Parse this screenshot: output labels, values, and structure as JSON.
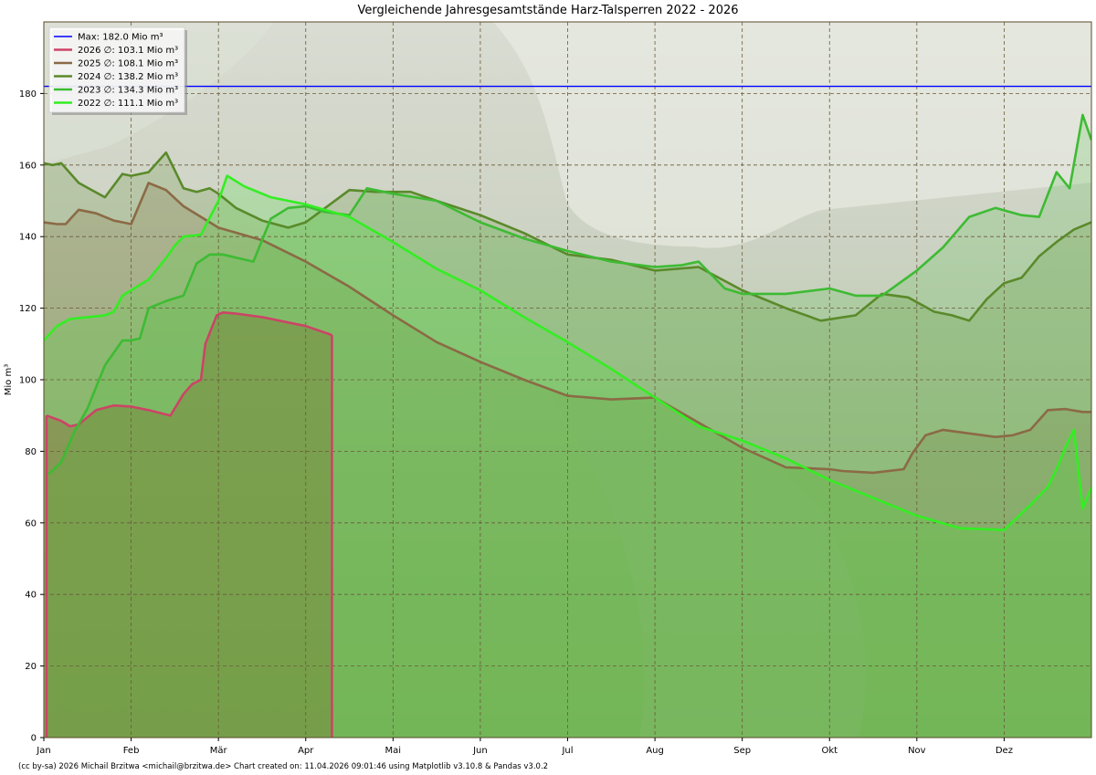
{
  "chart_data": {
    "type": "area",
    "title": "Vergleichende Jahresgesamtstände Harz-Talsperren 2022 - 2026",
    "ylabel": "Mio m³",
    "xlabel": "",
    "ylim": [
      0,
      200
    ],
    "xlim": [
      0,
      12
    ],
    "month_labels": [
      "Jan",
      "Feb",
      "Mär",
      "Apr",
      "Mai",
      "Jun",
      "Jul",
      "Aug",
      "Sep",
      "Okt",
      "Nov",
      "Dez"
    ],
    "y_ticks": [
      0,
      20,
      40,
      60,
      80,
      100,
      120,
      140,
      160,
      180
    ],
    "grid": true,
    "legend_position": "top-left",
    "max_line": {
      "name": "Max: 182.0 Mio m³",
      "value": 182.0,
      "color": "#0000ff"
    },
    "series": [
      {
        "name": "2026 ∅: 103.1 Mio m³",
        "color": "#cc4466",
        "fill": "#b45a5a",
        "fill_opacity": 0.55,
        "x": [
          0.03,
          0.2,
          0.3,
          0.4,
          0.6,
          0.8,
          1.0,
          1.2,
          1.45,
          1.6,
          1.7,
          1.8,
          1.85,
          1.98,
          2.05,
          2.2,
          2.5,
          3.0,
          3.3
        ],
        "y": [
          90,
          88.5,
          87,
          87.5,
          91.5,
          92.8,
          92.5,
          91.5,
          90,
          96,
          98.8,
          100,
          110,
          118,
          118.8,
          118.5,
          117.5,
          115,
          112.5
        ]
      },
      {
        "name": "2025 ∅: 108.1 Mio m³",
        "color": "#8b6a45",
        "fill": "#8b6a45",
        "fill_opacity": 0.22,
        "x": [
          0,
          0.15,
          0.25,
          0.4,
          0.6,
          0.8,
          1.0,
          1.2,
          1.4,
          1.6,
          1.8,
          2.0,
          2.5,
          3.0,
          3.5,
          4.0,
          4.5,
          5.0,
          5.5,
          6.0,
          6.5,
          7.0,
          7.5,
          8.0,
          8.5,
          9.0,
          9.15,
          9.5,
          9.85,
          9.95,
          10.1,
          10.3,
          10.6,
          10.9,
          11.1,
          11.3,
          11.5,
          11.7,
          11.9,
          12.0
        ],
        "y": [
          144,
          143.5,
          143.5,
          147.5,
          146.5,
          144.5,
          143.5,
          155,
          153,
          148.5,
          145.5,
          142.5,
          139,
          133,
          126,
          118,
          110.5,
          105,
          100,
          95.5,
          94.5,
          95,
          88,
          81,
          75.5,
          75,
          74.5,
          74,
          75,
          79.5,
          84.5,
          86,
          85,
          84,
          84.5,
          86,
          91.5,
          91.8,
          91,
          91
        ]
      },
      {
        "name": "2024 ∅: 138.2 Mio m³",
        "color": "#5a8a2a",
        "fill": "#5a8a2a",
        "fill_opacity": 0.2,
        "x": [
          0,
          0.1,
          0.2,
          0.4,
          0.7,
          0.9,
          1.0,
          1.2,
          1.4,
          1.5,
          1.6,
          1.75,
          1.9,
          2.0,
          2.2,
          2.5,
          2.8,
          3.0,
          3.25,
          3.5,
          3.8,
          4.2,
          4.5,
          5.0,
          5.5,
          6.0,
          6.5,
          7.0,
          7.5,
          8.0,
          8.5,
          8.9,
          9.3,
          9.6,
          9.9,
          10.2,
          10.4,
          10.6,
          10.8,
          11.0,
          11.2,
          11.4,
          11.6,
          11.8,
          12.0
        ],
        "y": [
          160.5,
          160,
          160.5,
          155,
          151,
          157.5,
          157,
          158,
          163.5,
          158.5,
          153.5,
          152.5,
          153.5,
          152,
          148,
          144.5,
          142.5,
          144,
          148.5,
          153,
          152.5,
          152.5,
          150,
          146,
          141,
          135,
          133.5,
          130.5,
          131.5,
          125,
          120,
          116.5,
          118,
          124,
          123,
          119,
          118,
          116.5,
          122.5,
          127,
          128.5,
          134.5,
          138.5,
          142,
          144
        ]
      },
      {
        "name": "2023 ∅: 134.3 Mio m³",
        "color": "#3dbb33",
        "fill": "#3dbb33",
        "fill_opacity": 0.18,
        "x": [
          0.05,
          0.2,
          0.35,
          0.5,
          0.7,
          0.9,
          1.0,
          1.1,
          1.2,
          1.4,
          1.6,
          1.75,
          1.9,
          2.05,
          2.4,
          2.6,
          2.8,
          3.0,
          3.2,
          3.5,
          3.7,
          4.0,
          4.5,
          5.0,
          5.5,
          6.0,
          6.5,
          7.0,
          7.3,
          7.5,
          7.8,
          8.0,
          8.5,
          9.0,
          9.3,
          9.6,
          10.0,
          10.3,
          10.6,
          10.9,
          11.2,
          11.4,
          11.6,
          11.75,
          11.9,
          12.0
        ],
        "y": [
          73.5,
          77,
          85.5,
          92,
          104,
          111,
          111,
          111.5,
          120,
          122,
          123.5,
          132.5,
          135,
          135,
          133,
          145,
          148,
          148.5,
          147,
          146,
          153.5,
          152,
          150,
          144,
          139.5,
          136,
          133,
          131.5,
          132,
          133,
          125.5,
          124,
          124,
          125.5,
          123.5,
          123.5,
          130.5,
          137,
          145.5,
          148,
          146,
          145.5,
          158,
          153.5,
          174,
          167
        ]
      },
      {
        "name": "2022 ∅: 111.1 Mio m³",
        "color": "#33ee22",
        "fill": "#33ee22",
        "fill_opacity": 0.18,
        "x": [
          0,
          0.15,
          0.3,
          0.5,
          0.7,
          0.8,
          0.9,
          1.0,
          1.2,
          1.4,
          1.5,
          1.6,
          1.8,
          2.0,
          2.1,
          2.3,
          2.6,
          3.0,
          3.5,
          4.0,
          4.5,
          5.0,
          5.5,
          6.0,
          6.5,
          7.0,
          7.5,
          8.0,
          8.5,
          9.0,
          9.5,
          10.0,
          10.5,
          11.0,
          11.3,
          11.5,
          11.6,
          11.7,
          11.8,
          11.9,
          12.0
        ],
        "y": [
          111,
          115,
          117,
          117.5,
          118,
          119,
          123.5,
          125,
          128,
          134,
          137.5,
          140,
          140.5,
          150,
          157,
          154,
          151,
          149,
          145.5,
          138.5,
          131,
          125,
          117.5,
          110.5,
          103,
          95,
          87,
          83,
          78,
          72,
          67,
          62,
          58.5,
          58,
          65,
          70,
          75,
          81,
          86,
          64,
          70
        ]
      }
    ],
    "footer": "(cc by-sa) 2026 Michail Brzitwa <michail@brzitwa.de>  Chart created on: 11.04.2026 09:01:46 using Matplotlib v3.10.8 & Pandas v3.0.2"
  }
}
